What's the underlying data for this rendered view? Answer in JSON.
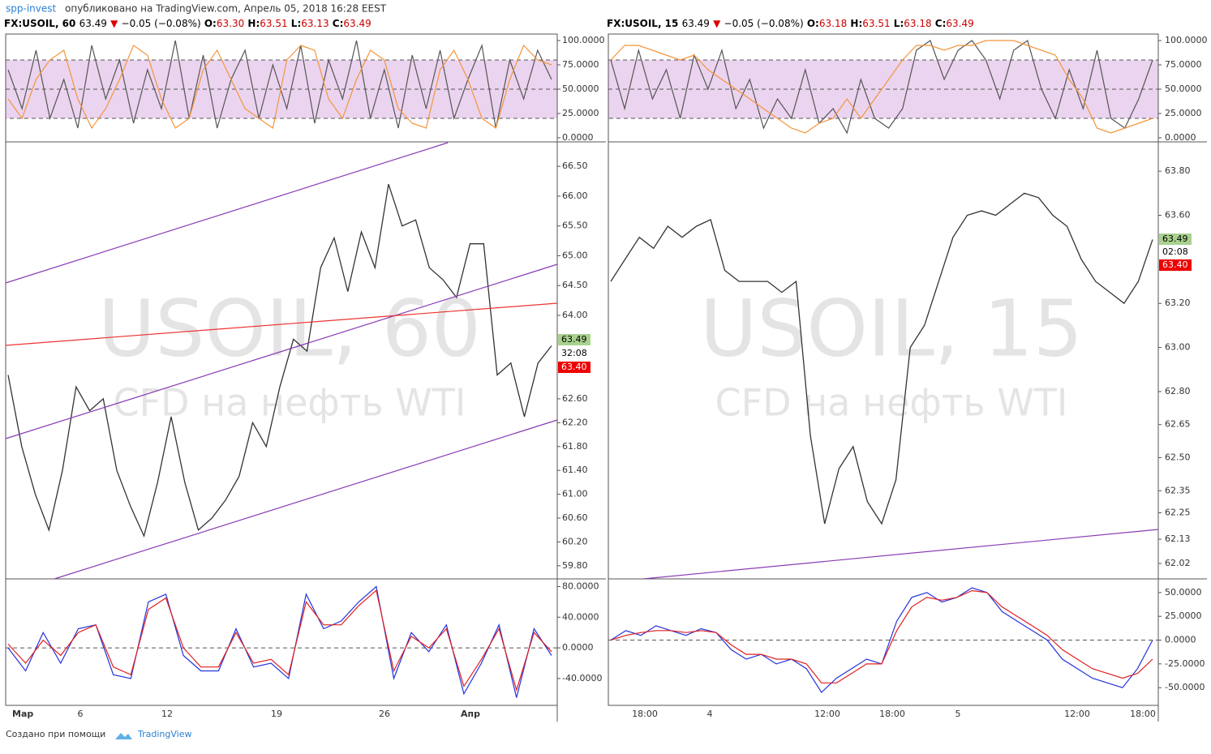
{
  "header": {
    "author": "spp-invest",
    "text": "опубликовано на TradingView.com, Апрель 05, 2018 16:28 EEST"
  },
  "panels": [
    {
      "symbol": "FX:USOIL, 60",
      "last": "63.49",
      "change": "−0.05 (−0.08%)",
      "ohlc": [
        {
          "label": "O:",
          "value": "63.30"
        },
        {
          "label": "H:",
          "value": "63.51"
        },
        {
          "label": "L:",
          "value": "63.13"
        },
        {
          "label": "C:",
          "value": "63.49"
        }
      ],
      "watermark": "USOIL, 60",
      "watermark_sub": "CFD на нефть WTI",
      "badges": [
        "63.49",
        "32:08",
        "63.40"
      ],
      "xlabels": [
        "Мар",
        "6",
        "12",
        "19",
        "26",
        "Апр"
      ],
      "osc_top": {
        "type": "line",
        "ylim": [
          -4.2,
          106.7
        ],
        "band": [
          20,
          80
        ],
        "midline": 50,
        "yticks": [
          {
            "value": 100,
            "label": "100.0000"
          },
          {
            "value": 75,
            "label": "75.0000"
          },
          {
            "value": 50,
            "label": "50.0000"
          },
          {
            "value": 25,
            "label": "25.0000"
          },
          {
            "value": 0,
            "label": "0.0000"
          }
        ],
        "series": [
          {
            "color": "#555",
            "values": [
              70,
              30,
              90,
              20,
              60,
              10,
              95,
              40,
              80,
              15,
              70,
              30,
              100,
              20,
              85,
              10,
              60,
              90,
              20,
              75,
              30,
              95,
              15,
              80,
              40,
              100,
              20,
              70,
              10,
              85,
              30,
              90,
              20,
              60,
              95,
              10,
              80,
              40,
              90,
              60
            ]
          },
          {
            "color": "#f5953a",
            "values": [
              40,
              20,
              60,
              80,
              90,
              40,
              10,
              30,
              60,
              95,
              85,
              40,
              10,
              20,
              70,
              90,
              60,
              30,
              20,
              10,
              80,
              95,
              90,
              40,
              20,
              60,
              90,
              80,
              30,
              15,
              10,
              70,
              90,
              60,
              20,
              10,
              60,
              95,
              80,
              75
            ]
          }
        ]
      },
      "price": {
        "type": "line",
        "color": "#333",
        "ylim": [
          59.58,
          66.91
        ],
        "yticks": [
          {
            "value": 66.5,
            "label": "66.50"
          },
          {
            "value": 66,
            "label": "66.00"
          },
          {
            "value": 65.5,
            "label": "65.50"
          },
          {
            "value": 65,
            "label": "65.00"
          },
          {
            "value": 64.5,
            "label": "64.50"
          },
          {
            "value": 64,
            "label": "64.00"
          },
          {
            "value": 62.6,
            "label": "62.60"
          },
          {
            "value": 62.2,
            "label": "62.20"
          },
          {
            "value": 61.8,
            "label": "61.80"
          },
          {
            "value": 61.4,
            "label": "61.40"
          },
          {
            "value": 61,
            "label": "61.00"
          },
          {
            "value": 60.6,
            "label": "60.60"
          },
          {
            "value": 60.2,
            "label": "60.20"
          },
          {
            "value": 59.8,
            "label": "59.80"
          }
        ],
        "values": [
          63.0,
          61.8,
          61.0,
          60.4,
          61.4,
          62.8,
          62.4,
          62.6,
          61.4,
          60.8,
          60.3,
          61.2,
          62.3,
          61.2,
          60.4,
          60.6,
          60.9,
          61.3,
          62.2,
          61.8,
          62.8,
          63.6,
          63.4,
          64.8,
          65.3,
          64.4,
          65.4,
          64.8,
          66.2,
          65.5,
          65.6,
          64.8,
          64.6,
          64.3,
          65.2,
          65.2,
          63.0,
          63.2,
          62.3,
          63.2,
          63.49
        ]
      },
      "osc_bottom": {
        "type": "line",
        "ylim": [
          -75,
          90
        ],
        "yticks": [
          {
            "value": 80,
            "label": "80.0000"
          },
          {
            "value": 40,
            "label": "40.0000"
          },
          {
            "value": 0,
            "label": "0.0000"
          },
          {
            "value": -40,
            "label": "-40.0000"
          }
        ],
        "series": [
          {
            "color": "#2233dd",
            "values": [
              0,
              -30,
              20,
              -20,
              25,
              30,
              -35,
              -40,
              60,
              70,
              -10,
              -30,
              -30,
              25,
              -25,
              -20,
              -40,
              70,
              25,
              35,
              60,
              80,
              -40,
              20,
              -5,
              30,
              -60,
              -20,
              30,
              -65,
              25,
              -10
            ]
          },
          {
            "color": "#e02020",
            "values": [
              5,
              -20,
              10,
              -10,
              20,
              30,
              -25,
              -35,
              50,
              65,
              0,
              -25,
              -25,
              20,
              -20,
              -15,
              -35,
              60,
              30,
              30,
              55,
              75,
              -30,
              15,
              0,
              25,
              -50,
              -15,
              25,
              -55,
              20,
              -5
            ]
          }
        ]
      }
    },
    {
      "symbol": "FX:USOIL, 15",
      "last": "63.49",
      "change": "−0.05 (−0.08%)",
      "ohlc": [
        {
          "label": "O:",
          "value": "63.18"
        },
        {
          "label": "H:",
          "value": "63.51"
        },
        {
          "label": "L:",
          "value": "63.18"
        },
        {
          "label": "C:",
          "value": "63.49"
        }
      ],
      "watermark": "USOIL, 15",
      "watermark_sub": "CFD на нефть WTI",
      "badges": [
        "63.49",
        "02:08",
        "63.40"
      ],
      "xlabels": [
        "18:00",
        "4",
        "12:00",
        "18:00",
        "5",
        "12:00",
        "18:00"
      ],
      "osc_top": {
        "type": "line",
        "ylim": [
          -4.2,
          106.7
        ],
        "band": [
          20,
          80
        ],
        "midline": 50,
        "yticks": [
          {
            "value": 100,
            "label": "100.0000"
          },
          {
            "value": 75,
            "label": "75.0000"
          },
          {
            "value": 50,
            "label": "50.0000"
          },
          {
            "value": 25,
            "label": "25.0000"
          },
          {
            "value": 0,
            "label": "0.0000"
          }
        ],
        "series": [
          {
            "color": "#555",
            "values": [
              80,
              30,
              90,
              40,
              70,
              20,
              85,
              50,
              90,
              30,
              60,
              10,
              40,
              20,
              70,
              15,
              30,
              5,
              60,
              20,
              10,
              30,
              90,
              100,
              60,
              90,
              100,
              80,
              40,
              90,
              100,
              50,
              20,
              70,
              30,
              90,
              20,
              10,
              40,
              80
            ]
          },
          {
            "color": "#f5953a",
            "values": [
              80,
              95,
              95,
              90,
              85,
              80,
              85,
              70,
              60,
              50,
              40,
              30,
              20,
              10,
              5,
              15,
              20,
              40,
              20,
              40,
              60,
              80,
              95,
              95,
              90,
              95,
              95,
              100,
              100,
              100,
              95,
              90,
              85,
              60,
              40,
              10,
              5,
              10,
              15,
              20
            ]
          }
        ]
      },
      "price": {
        "type": "line",
        "color": "#333",
        "ylim": [
          61.95,
          63.933
        ],
        "yticks": [
          {
            "value": 63.8,
            "label": "63.80"
          },
          {
            "value": 63.6,
            "label": "63.60"
          },
          {
            "value": 63.2,
            "label": "63.20"
          },
          {
            "value": 63,
            "label": "63.00"
          },
          {
            "value": 62.8,
            "label": "62.80"
          },
          {
            "value": 62.65,
            "label": "62.65"
          },
          {
            "value": 62.5,
            "label": "62.50"
          },
          {
            "value": 62.35,
            "label": "62.35"
          },
          {
            "value": 62.25,
            "label": "62.25"
          },
          {
            "value": 62.13,
            "label": "62.13"
          },
          {
            "value": 62.02,
            "label": "62.02"
          }
        ],
        "values": [
          63.3,
          63.4,
          63.5,
          63.45,
          63.55,
          63.5,
          63.55,
          63.58,
          63.35,
          63.3,
          63.3,
          63.3,
          63.25,
          63.3,
          62.6,
          62.2,
          62.45,
          62.55,
          62.3,
          62.2,
          62.4,
          63.0,
          63.1,
          63.3,
          63.5,
          63.6,
          63.62,
          63.6,
          63.65,
          63.7,
          63.68,
          63.6,
          63.55,
          63.4,
          63.3,
          63.25,
          63.2,
          63.3,
          63.49
        ]
      },
      "osc_bottom": {
        "type": "line",
        "ylim": [
          -68.6,
          64.4
        ],
        "yticks": [
          {
            "value": 50,
            "label": "50.0000"
          },
          {
            "value": 25,
            "label": "25.0000"
          },
          {
            "value": 0,
            "label": "0.0000"
          },
          {
            "value": -25,
            "label": "-25.0000"
          },
          {
            "value": -50,
            "label": "-50.0000"
          }
        ],
        "series": [
          {
            "color": "#2233dd",
            "values": [
              0,
              10,
              5,
              15,
              10,
              5,
              12,
              8,
              -10,
              -20,
              -15,
              -25,
              -20,
              -30,
              -55,
              -40,
              -30,
              -20,
              -25,
              20,
              45,
              50,
              40,
              45,
              55,
              50,
              30,
              20,
              10,
              0,
              -20,
              -30,
              -40,
              -45,
              -50,
              -30,
              0
            ]
          },
          {
            "color": "#e02020",
            "values": [
              0,
              5,
              8,
              10,
              10,
              8,
              10,
              8,
              -5,
              -15,
              -15,
              -20,
              -20,
              -25,
              -45,
              -45,
              -35,
              -25,
              -25,
              10,
              35,
              45,
              42,
              45,
              52,
              50,
              35,
              25,
              15,
              5,
              -10,
              -20,
              -30,
              -35,
              -40,
              -35,
              -20
            ]
          }
        ]
      }
    }
  ],
  "footer": {
    "text": "Создано при помощи",
    "brand": "TradingView"
  }
}
